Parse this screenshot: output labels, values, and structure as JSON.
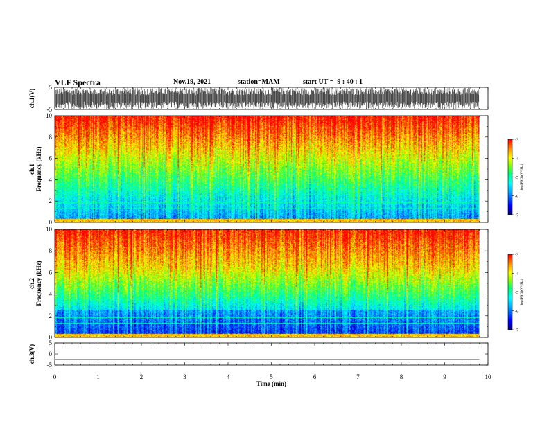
{
  "header": {
    "title": "VLF Spectra",
    "date": "Nov.19, 2021",
    "station": "station=MAM",
    "start": "start UT =  9 : 40 : 1"
  },
  "colors": {
    "palette": [
      "#000080",
      "#0000ff",
      "#00a0ff",
      "#00ffff",
      "#00ff80",
      "#80ff00",
      "#ffff00",
      "#ffa000",
      "#ff0000",
      "#ffffff"
    ]
  },
  "chart_data": [
    {
      "type": "line",
      "panel": "waveform-ch1",
      "ylabel": "ch.1(V)",
      "ylim": [
        -5,
        5
      ],
      "yticks": [
        "5",
        "-5"
      ],
      "note": "dense impulsive waveform spanning nearly full scale"
    },
    {
      "type": "heatmap",
      "panel": "spectrogram-ch1",
      "ylabel_lines": [
        "ch.1",
        "Frequency (kHz)"
      ],
      "xlim": [
        0,
        10
      ],
      "ylim": [
        0,
        10
      ],
      "yticks": [
        "0",
        "2",
        "4",
        "6",
        "8",
        "10"
      ],
      "colorbar": {
        "label": "log(PSD)(V²/Hz)",
        "ticks": [
          "-3",
          "-4",
          "-5",
          "-6",
          "-7"
        ],
        "range": [
          -7,
          -3
        ]
      },
      "data_end_min": 9.8,
      "band_boundary_khz": {
        "red_top": 7.0,
        "green_mid": 4.0,
        "blue_low": 2.0
      }
    },
    {
      "type": "heatmap",
      "panel": "spectrogram-ch2",
      "ylabel_lines": [
        "ch.2",
        "Frequency (kHz)"
      ],
      "xlim": [
        0,
        10
      ],
      "ylim": [
        0,
        10
      ],
      "yticks": [
        "0",
        "2",
        "4",
        "6",
        "8",
        "10"
      ],
      "colorbar": {
        "label": "log(PSD)(V²/Hz)",
        "ticks": [
          "-3",
          "-4",
          "-5",
          "-6",
          "-7"
        ],
        "range": [
          -7,
          -3
        ]
      },
      "data_end_min": 9.8,
      "band_boundary_khz": {
        "red_top": 6.5,
        "green_mid": 4.0,
        "blue_low": 2.5
      }
    },
    {
      "type": "line",
      "panel": "waveform-ch3",
      "ylabel": "ch.3(V)",
      "ylim": [
        -5,
        5
      ],
      "yticks": [
        "5",
        "0",
        "-5"
      ],
      "constant_value": -2.5,
      "xlabel": "Time (min)",
      "xticks": [
        "0",
        "1",
        "2",
        "3",
        "4",
        "5",
        "6",
        "7",
        "8",
        "9",
        "10"
      ]
    }
  ]
}
